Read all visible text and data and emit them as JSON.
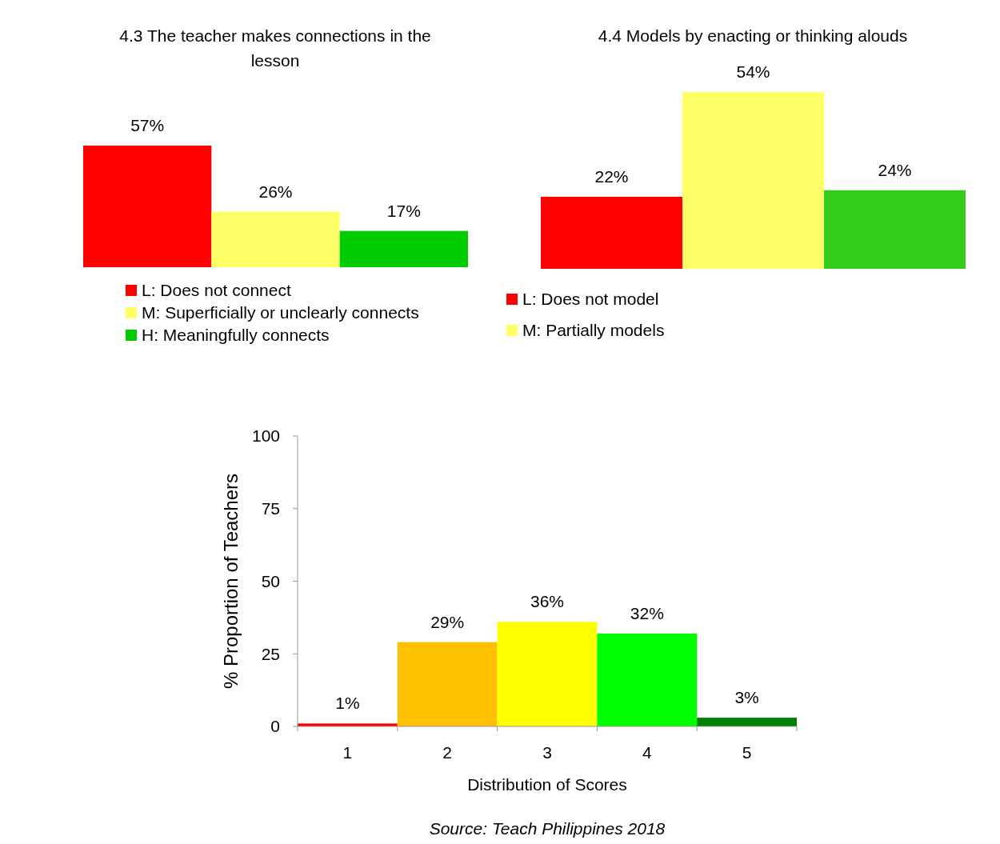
{
  "chart_data": [
    {
      "type": "bar",
      "title": "4.3 The teacher makes connections in the lesson",
      "categories": [
        null
      ],
      "legend": "bottom",
      "series": [
        {
          "name": "L: Does not connect",
          "color": "#ff0000",
          "values": [
            57
          ],
          "value_labels": [
            "57%"
          ]
        },
        {
          "name": "M: Superficially or unclearly connects",
          "color": "#ffff66",
          "values": [
            26
          ],
          "value_labels": [
            "26%"
          ]
        },
        {
          "name": "H: Meaningfully connects",
          "color": "#00cc00",
          "values": [
            17
          ],
          "value_labels": [
            "17%"
          ]
        }
      ]
    },
    {
      "type": "bar",
      "title": "4.4 Models by enacting or thinking alouds",
      "categories": [
        null
      ],
      "legend": "bottom left",
      "series": [
        {
          "name": "L: Does not model",
          "color": "#ff0000",
          "values": [
            22
          ],
          "value_labels": [
            "22%"
          ]
        },
        {
          "name": "M: Partially models",
          "color": "#ffff66",
          "values": [
            54
          ],
          "value_labels": [
            "54%"
          ]
        },
        {
          "color": "#33cc1a",
          "values": [
            24
          ],
          "value_labels": [
            "24%"
          ]
        }
      ]
    },
    {
      "type": "bar",
      "categories": [
        "1",
        "2",
        "3",
        "4",
        "5"
      ],
      "values": [
        1,
        29,
        36,
        32,
        3
      ],
      "colors": [
        "#ff0000",
        "#ffc000",
        "#ffff00",
        "#00ff00",
        "#008000"
      ],
      "value_labels": [
        "1%",
        "29%",
        "36%",
        "32%",
        "3%"
      ],
      "ylim": [
        0,
        100
      ],
      "yticks": [
        0,
        25,
        50,
        75,
        100
      ],
      "xlabel": "Distribution of Scores",
      "ylabel": "% Proportion of Teachers",
      "annotations": [
        "Source: Teach Philippines 2018"
      ]
    }
  ]
}
